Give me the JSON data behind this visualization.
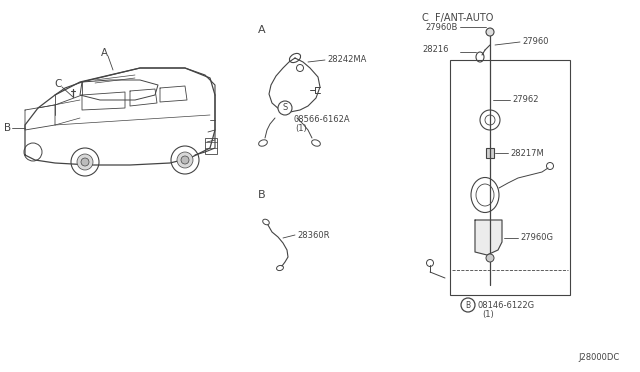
{
  "bg_color": "#ffffff",
  "line_color": "#444444",
  "text_color": "#444444",
  "diagram_id": "J28000DC",
  "labels": {
    "section_A": "A",
    "section_B": "B",
    "section_C": "C  F/ANT-AUTO",
    "part_28242MA": "28242MA",
    "part_08566": "08566-6162A",
    "part_08566_num": "(1)",
    "part_28360R": "28360R",
    "part_27960B": "27960B",
    "part_28216": "28216",
    "part_27960": "27960",
    "part_27962": "27962",
    "part_28217M": "28217M",
    "part_27960G": "27960G",
    "part_08146": "08146-6122G",
    "part_08146_num": "(1)",
    "car_A": "A",
    "car_B": "B",
    "car_C": "C"
  }
}
